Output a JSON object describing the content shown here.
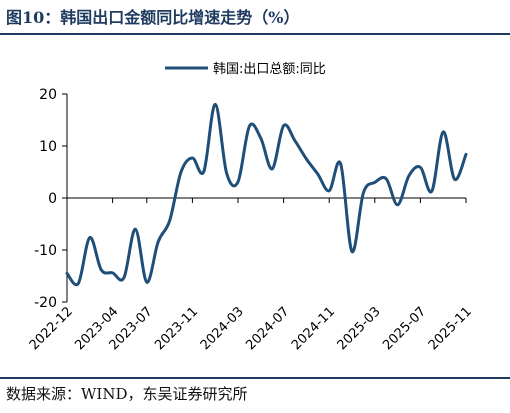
{
  "figure": {
    "title": "图10：韩国出口金额同比增速走势（%）",
    "source": "数据来源：WIND，东吴证券研究所"
  },
  "colors": {
    "line": "#1f4e79",
    "rule": "#1f3a5f"
  },
  "chart_data": {
    "type": "line",
    "title": "",
    "xlabel": "",
    "ylabel": "",
    "ylim": [
      -20,
      20
    ],
    "yticks": [
      20,
      10,
      0,
      -10,
      -20
    ],
    "grid": false,
    "legend_position": "top-center",
    "xtick_labels": [
      "2022-12",
      "2023-04",
      "2023-07",
      "2023-11",
      "2024-03",
      "2024-07",
      "2024-11",
      "2025-03",
      "2025-07",
      "2025-11"
    ],
    "series": [
      {
        "name": "韩国:出口总额:同比",
        "x": [
          "2022-12",
          "2023-01",
          "2023-02",
          "2023-03",
          "2023-04",
          "2023-05",
          "2023-06",
          "2023-07",
          "2023-08",
          "2023-09",
          "2023-10",
          "2023-11",
          "2023-12",
          "2024-01",
          "2024-02",
          "2024-03",
          "2024-04",
          "2024-05",
          "2024-06",
          "2024-07",
          "2024-08",
          "2024-09",
          "2024-10",
          "2024-11",
          "2024-12",
          "2025-01",
          "2025-02",
          "2025-03",
          "2025-04",
          "2025-05",
          "2025-06",
          "2025-07",
          "2025-08",
          "2025-09",
          "2025-10",
          "2025-11"
        ],
        "values": [
          -14.5,
          -16.4,
          -7.6,
          -13.8,
          -14.4,
          -15.3,
          -6.0,
          -16.2,
          -8.4,
          -4.4,
          5.0,
          7.7,
          5.1,
          18.0,
          4.8,
          3.1,
          13.8,
          11.5,
          5.6,
          13.9,
          11.0,
          7.5,
          4.6,
          1.4,
          6.6,
          -10.3,
          1.0,
          3.0,
          3.7,
          -1.3,
          4.3,
          5.9,
          1.3,
          12.7,
          3.6,
          8.4
        ]
      }
    ]
  }
}
